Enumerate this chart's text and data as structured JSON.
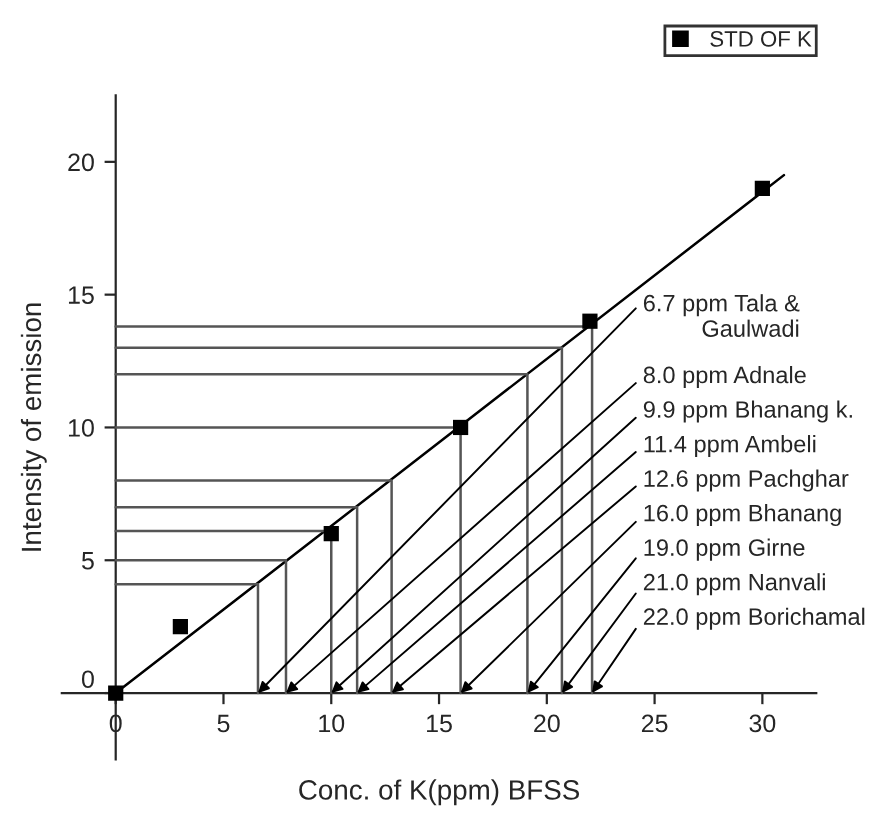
{
  "chart_data": {
    "type": "scatter",
    "xlabel": "Conc. of K(ppm) BFSS",
    "ylabel": "Intensity of emission",
    "xlim": [
      -2.5,
      32.5
    ],
    "ylim": [
      -2.5,
      22.5
    ],
    "xticks": [
      0,
      5,
      10,
      15,
      20,
      25,
      30
    ],
    "yticks": [
      0,
      5,
      10,
      15,
      20
    ],
    "grid": false,
    "legend": "top right",
    "series": [
      {
        "name": "STD OF K",
        "marker": "square",
        "color": "#000000",
        "x": [
          0,
          3,
          10,
          16,
          22,
          30
        ],
        "values": [
          0,
          2.5,
          6,
          10,
          14,
          19
        ]
      },
      {
        "type": "line",
        "color": "#000000",
        "x": [
          0,
          31
        ],
        "values": [
          0,
          19.5
        ]
      },
      {
        "type": "line",
        "color": "#555555",
        "x": [
          0,
          6.6,
          6.6
        ],
        "values": [
          4.1,
          4.1,
          0
        ]
      },
      {
        "type": "line",
        "color": "#555555",
        "x": [
          0,
          7.9,
          7.9
        ],
        "values": [
          5.0,
          5.0,
          0
        ]
      },
      {
        "type": "line",
        "color": "#555555",
        "x": [
          0,
          10,
          10
        ],
        "values": [
          6.1,
          6.1,
          0
        ]
      },
      {
        "type": "line",
        "color": "#555555",
        "x": [
          0,
          11.2,
          11.2
        ],
        "values": [
          7.0,
          7.0,
          0
        ]
      },
      {
        "type": "line",
        "color": "#555555",
        "x": [
          0,
          12.8,
          12.8
        ],
        "values": [
          8.0,
          8.0,
          0
        ]
      },
      {
        "type": "line",
        "color": "#555555",
        "x": [
          0,
          16,
          16
        ],
        "values": [
          10,
          10,
          0
        ]
      },
      {
        "type": "line",
        "color": "#555555",
        "x": [
          0,
          19.1,
          19.1
        ],
        "values": [
          12.0,
          12.0,
          0
        ]
      },
      {
        "type": "line",
        "color": "#555555",
        "x": [
          0,
          20.7,
          20.7
        ],
        "values": [
          13.0,
          13.0,
          0
        ]
      },
      {
        "type": "line",
        "color": "#555555",
        "x": [
          0,
          22.1,
          22.1
        ],
        "values": [
          13.8,
          13.8,
          0
        ]
      }
    ],
    "annotations": [
      {
        "text": "6.7 ppm Tala &\nGaulwadi",
        "x": 6.6,
        "y": 0
      },
      {
        "text": "8.0 ppm Adnale",
        "x": 7.9,
        "y": 0
      },
      {
        "text": "9.9 ppm Bhanang k.",
        "x": 10,
        "y": 0
      },
      {
        "text": "11.4 ppm Ambeli",
        "x": 11.2,
        "y": 0
      },
      {
        "text": "12.6 ppm Pachghar",
        "x": 12.8,
        "y": 0
      },
      {
        "text": "16.0 ppm Bhanang",
        "x": 16,
        "y": 0
      },
      {
        "text": "19.0 ppm Girne",
        "x": 19.1,
        "y": 0
      },
      {
        "text": "21.0 ppm Nanvali",
        "x": 20.7,
        "y": 0
      },
      {
        "text": "22.0 ppm Borichamal",
        "x": 22.1,
        "y": 0
      }
    ]
  }
}
